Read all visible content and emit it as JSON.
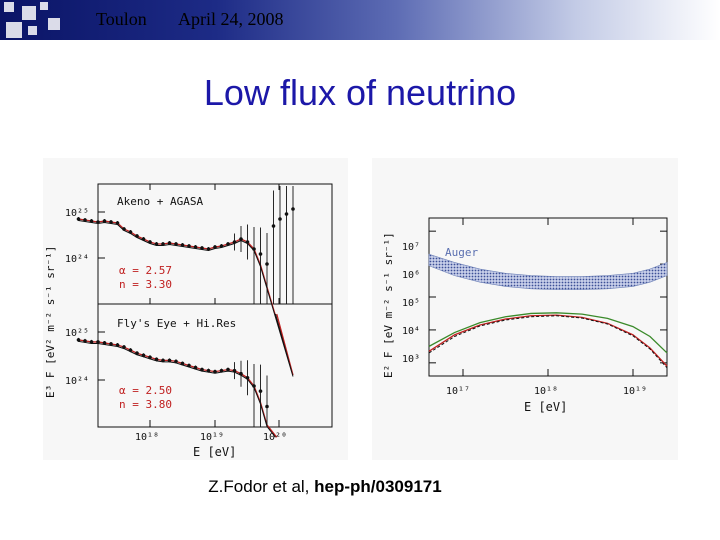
{
  "header": {
    "location": "Toulon",
    "date": "April 24, 2008"
  },
  "title": "Low flux of neutrino",
  "caption": {
    "authors": "Z.Fodor et al, ",
    "reference": "hep-ph/0309171"
  },
  "colors": {
    "title": "#1c18a8",
    "model_red": "#c02020",
    "model_green": "#3a8a2a",
    "auger_band": "#6b7fb6"
  },
  "chart_data": [
    {
      "type": "scatter",
      "panel": "top-left",
      "label": "Akeno + AGASA",
      "xlabel": "E [eV]",
      "ylabel": "E³ F  [eV² m⁻² s⁻¹ sr⁻¹]",
      "y_ticks": [
        "10²⁵",
        "10²⁴"
      ],
      "params": [
        "α = 2.57",
        "n = 3.30"
      ],
      "x_log10": [
        17.0,
        17.1,
        17.2,
        17.3,
        17.4,
        17.5,
        17.6,
        17.7,
        17.8,
        17.9,
        18.0,
        18.1,
        18.2,
        18.3,
        18.4,
        18.5,
        18.6,
        18.7,
        18.8,
        18.9,
        19.0,
        19.1,
        19.2,
        19.3,
        19.4,
        19.5,
        19.6,
        19.7,
        19.8,
        19.9,
        20.0,
        20.1,
        20.2,
        20.3
      ],
      "y_log10": [
        24.85,
        24.84,
        24.83,
        24.82,
        24.83,
        24.82,
        24.81,
        24.75,
        24.72,
        24.68,
        24.65,
        24.62,
        24.6,
        24.6,
        24.61,
        24.6,
        24.59,
        24.58,
        24.57,
        24.56,
        24.55,
        24.57,
        24.58,
        24.6,
        24.62,
        24.65,
        24.62,
        24.55,
        24.5,
        24.4,
        24.78,
        24.85,
        24.9,
        24.95
      ],
      "models": [
        "red",
        "black"
      ]
    },
    {
      "type": "scatter",
      "panel": "bottom-left",
      "label": "Fly's Eye + Hi.Res",
      "xlabel": "E [eV]",
      "ylabel": "E³ F  [eV² m⁻² s⁻¹ sr⁻¹]",
      "x_ticks": [
        "10¹⁸",
        "10¹⁹",
        "10²⁰"
      ],
      "y_ticks": [
        "10²⁵",
        "10²⁴"
      ],
      "params": [
        "α = 2.50",
        "n = 3.80"
      ],
      "x_log10": [
        17.0,
        17.1,
        17.2,
        17.3,
        17.4,
        17.5,
        17.6,
        17.7,
        17.8,
        17.9,
        18.0,
        18.1,
        18.2,
        18.3,
        18.4,
        18.5,
        18.6,
        18.7,
        18.8,
        18.9,
        19.0,
        19.1,
        19.2,
        19.3,
        19.4,
        19.5,
        19.6,
        19.7,
        19.8,
        19.9
      ],
      "y_log10": [
        24.85,
        24.84,
        24.83,
        24.83,
        24.82,
        24.81,
        24.8,
        24.78,
        24.75,
        24.72,
        24.7,
        24.68,
        24.66,
        24.65,
        24.65,
        24.64,
        24.62,
        24.6,
        24.58,
        24.56,
        24.55,
        24.54,
        24.55,
        24.56,
        24.55,
        24.52,
        24.48,
        24.4,
        24.35,
        24.2
      ],
      "models": [
        "red",
        "black"
      ]
    },
    {
      "type": "line",
      "panel": "right",
      "label": "Auger",
      "xlabel": "E [eV]",
      "ylabel": "E² F [eV m⁻² s⁻¹ sr⁻¹]",
      "x_ticks": [
        "10¹⁷",
        "10¹⁸",
        "10¹⁹"
      ],
      "y_ticks": [
        "10⁷",
        "10⁶",
        "10⁵",
        "10⁴",
        "10³"
      ],
      "auger_band": {
        "x_log10": [
          16.6,
          16.9,
          17.2,
          17.5,
          17.8,
          18.1,
          18.4,
          18.7,
          19.0,
          19.2,
          19.4
        ],
        "upper_log10": [
          6.3,
          6.05,
          5.85,
          5.72,
          5.65,
          5.62,
          5.62,
          5.65,
          5.72,
          5.85,
          6.05
        ],
        "lower_log10": [
          5.95,
          5.65,
          5.45,
          5.32,
          5.25,
          5.22,
          5.22,
          5.25,
          5.32,
          5.45,
          5.65
        ]
      },
      "series": [
        {
          "name": "green",
          "x_log10": [
            16.6,
            16.9,
            17.2,
            17.5,
            17.8,
            18.1,
            18.4,
            18.7,
            19.0,
            19.2,
            19.4
          ],
          "y_log10": [
            3.5,
            3.92,
            4.22,
            4.4,
            4.5,
            4.52,
            4.48,
            4.35,
            4.1,
            3.8,
            3.3
          ]
        },
        {
          "name": "red",
          "x_log10": [
            16.6,
            16.9,
            17.2,
            17.5,
            17.8,
            18.1,
            18.4,
            18.7,
            19.0,
            19.2,
            19.4
          ],
          "y_log10": [
            3.35,
            3.85,
            4.15,
            4.33,
            4.43,
            4.45,
            4.38,
            4.2,
            3.85,
            3.45,
            2.9
          ]
        },
        {
          "name": "black",
          "x_log10": [
            16.6,
            16.9,
            17.2,
            17.5,
            17.8,
            18.1,
            18.4,
            18.7,
            19.0,
            19.2,
            19.4
          ],
          "y_log10": [
            3.3,
            3.8,
            4.12,
            4.3,
            4.4,
            4.43,
            4.36,
            4.18,
            3.82,
            3.42,
            2.85
          ]
        }
      ]
    }
  ]
}
